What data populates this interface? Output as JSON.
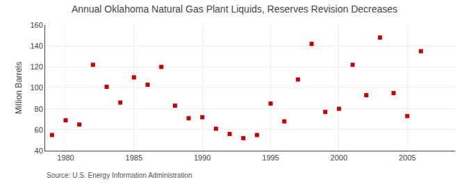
{
  "chart_data": {
    "type": "scatter",
    "title": "Annual Oklahoma Natural Gas Plant Liquids, Reserves Revision Decreases",
    "ylabel": "Million Barrels",
    "annotations": [
      "Source: U.S. Energy Information Administration"
    ],
    "x": [
      1979,
      1980,
      1981,
      1982,
      1983,
      1984,
      1985,
      1986,
      1987,
      1988,
      1989,
      1990,
      1991,
      1992,
      1993,
      1994,
      1995,
      1996,
      1997,
      1998,
      1999,
      2000,
      2001,
      2002,
      2003,
      2004,
      2005,
      2006
    ],
    "values": [
      55,
      69,
      65,
      122,
      101,
      86,
      110,
      103,
      120,
      83,
      71,
      72,
      61,
      56,
      52,
      55,
      85,
      68,
      108,
      142,
      77,
      80,
      122,
      93,
      148,
      95,
      73,
      135
    ],
    "color": "#cc0000",
    "marker": "square",
    "xlim": [
      1978.5,
      2008.5
    ],
    "xticks": [
      1980,
      1985,
      1990,
      1995,
      2000,
      2005
    ],
    "ylim": [
      40,
      160
    ],
    "yticks": [
      40,
      60,
      80,
      100,
      120,
      140,
      160
    ],
    "grid": true
  }
}
